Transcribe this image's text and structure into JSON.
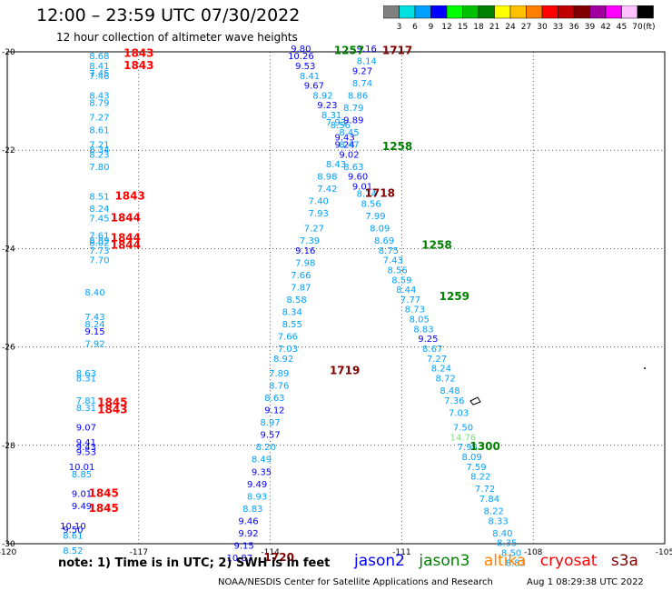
{
  "header": {
    "title": "12:00 – 23:59 UTC 07/30/2022",
    "subtitle": "12 hour collection of altimeter wave heights"
  },
  "color_legend": {
    "unit": "(ft)",
    "colors": [
      "#808080",
      "#00e0e0",
      "#00a0ff",
      "#0000ff",
      "#00ff00",
      "#00c000",
      "#008000",
      "#ffff00",
      "#ffc000",
      "#ff8000",
      "#ff0000",
      "#c00000",
      "#800000",
      "#a000a0",
      "#ff00ff",
      "#ffc0ff",
      "#000000"
    ],
    "labels": [
      "3",
      "6",
      "9",
      "12",
      "15",
      "18",
      "21",
      "24",
      "27",
      "30",
      "33",
      "36",
      "39",
      "42",
      "45",
      "70"
    ]
  },
  "map": {
    "lon_ticks": [
      "-120",
      "-117",
      "-114",
      "-111",
      "-108",
      "-105"
    ],
    "lat_ticks": [
      "-20",
      "-22",
      "-24",
      "-26",
      "-28",
      "-30"
    ]
  },
  "chart_data": {
    "type": "scatter",
    "xlim": [
      -120,
      -105
    ],
    "ylim": [
      -30,
      -20
    ],
    "grid": true,
    "points": [
      {
        "x": -117.9,
        "y": -20.15,
        "text": "8.68",
        "c": "#00a0ff"
      },
      {
        "x": -117.9,
        "y": -20.35,
        "text": "8.41",
        "c": "#00a0ff"
      },
      {
        "x": -117.9,
        "y": -20.5,
        "text": "7.45",
        "c": "#00a0ff"
      },
      {
        "x": -117.9,
        "y": -20.55,
        "text": "7.48",
        "c": "#00a0ff"
      },
      {
        "x": -117.9,
        "y": -20.95,
        "text": "8.43",
        "c": "#00a0ff"
      },
      {
        "x": -117.9,
        "y": -21.1,
        "text": "8.79",
        "c": "#00a0ff"
      },
      {
        "x": -117.9,
        "y": -21.4,
        "text": "7.27",
        "c": "#00a0ff"
      },
      {
        "x": -117.9,
        "y": -21.65,
        "text": "8.61",
        "c": "#00a0ff"
      },
      {
        "x": -117.9,
        "y": -21.95,
        "text": "7.21",
        "c": "#00a0ff"
      },
      {
        "x": -117.9,
        "y": -22.05,
        "text": "8.34",
        "c": "#00a0ff"
      },
      {
        "x": -117.9,
        "y": -22.15,
        "text": "8.23",
        "c": "#00a0ff"
      },
      {
        "x": -117.9,
        "y": -22.4,
        "text": "7.80",
        "c": "#00a0ff"
      },
      {
        "x": -117.9,
        "y": -23.0,
        "text": "8.51",
        "c": "#00a0ff"
      },
      {
        "x": -117.9,
        "y": -23.25,
        "text": "8.24",
        "c": "#00a0ff"
      },
      {
        "x": -117.9,
        "y": -23.45,
        "text": "7.45",
        "c": "#00a0ff"
      },
      {
        "x": -117.9,
        "y": -23.8,
        "text": "7.61",
        "c": "#00a0ff"
      },
      {
        "x": -117.9,
        "y": -23.9,
        "text": "8.89",
        "c": "#00a0ff"
      },
      {
        "x": -117.9,
        "y": -23.95,
        "text": "8.02",
        "c": "#00a0ff"
      },
      {
        "x": -117.9,
        "y": -24.1,
        "text": "7.73",
        "c": "#00a0ff"
      },
      {
        "x": -117.9,
        "y": -24.3,
        "text": "7.70",
        "c": "#00a0ff"
      },
      {
        "x": -118.0,
        "y": -24.95,
        "text": "8.40",
        "c": "#00a0ff"
      },
      {
        "x": -118.0,
        "y": -25.45,
        "text": "7.43",
        "c": "#00a0ff"
      },
      {
        "x": -118.0,
        "y": -25.6,
        "text": "8.24",
        "c": "#00a0ff"
      },
      {
        "x": -118.0,
        "y": -25.75,
        "text": "9.15",
        "c": "#0000ff"
      },
      {
        "x": -118.0,
        "y": -26.0,
        "text": "7.92",
        "c": "#00a0ff"
      },
      {
        "x": -118.2,
        "y": -26.6,
        "text": "8.63",
        "c": "#00a0ff"
      },
      {
        "x": -118.2,
        "y": -26.7,
        "text": "8.31",
        "c": "#00a0ff"
      },
      {
        "x": -118.2,
        "y": -27.15,
        "text": "7.81",
        "c": "#00a0ff"
      },
      {
        "x": -118.2,
        "y": -27.3,
        "text": "8.31",
        "c": "#00a0ff"
      },
      {
        "x": -118.2,
        "y": -27.7,
        "text": "9.07",
        "c": "#0000ff"
      },
      {
        "x": -118.2,
        "y": -28.0,
        "text": "9.41",
        "c": "#0000ff"
      },
      {
        "x": -118.2,
        "y": -28.1,
        "text": "9.43",
        "c": "#0000ff"
      },
      {
        "x": -118.2,
        "y": -28.2,
        "text": "9.53",
        "c": "#0000ff"
      },
      {
        "x": -118.3,
        "y": -28.5,
        "text": "10.01",
        "c": "#0000ff"
      },
      {
        "x": -118.3,
        "y": -28.65,
        "text": "8.85",
        "c": "#00a0ff"
      },
      {
        "x": -118.3,
        "y": -29.05,
        "text": "9.01",
        "c": "#0000ff"
      },
      {
        "x": -118.3,
        "y": -29.3,
        "text": "9.49",
        "c": "#0000ff"
      },
      {
        "x": -118.5,
        "y": -29.7,
        "text": "10.10",
        "c": "#0000ff"
      },
      {
        "x": -118.5,
        "y": -29.78,
        "text": "9.50",
        "c": "#0000ff"
      },
      {
        "x": -118.5,
        "y": -29.9,
        "text": "8.61",
        "c": "#00a0ff"
      },
      {
        "x": -118.5,
        "y": -30.2,
        "text": "8.52",
        "c": "#00a0ff"
      },
      {
        "x": -113.3,
        "y": -20.0,
        "text": "9.80",
        "c": "#0000ff"
      },
      {
        "x": -113.3,
        "y": -20.15,
        "text": "10.26",
        "c": "#0000ff"
      },
      {
        "x": -113.2,
        "y": -20.35,
        "text": "9.53",
        "c": "#0000ff"
      },
      {
        "x": -113.1,
        "y": -20.55,
        "text": "8.41",
        "c": "#00a0ff"
      },
      {
        "x": -113.0,
        "y": -20.75,
        "text": "9.67",
        "c": "#0000ff"
      },
      {
        "x": -112.8,
        "y": -20.95,
        "text": "8.92",
        "c": "#00a0ff"
      },
      {
        "x": -112.7,
        "y": -21.15,
        "text": "9.23",
        "c": "#0000ff"
      },
      {
        "x": -112.6,
        "y": -21.35,
        "text": "8.31",
        "c": "#00a0ff"
      },
      {
        "x": -112.5,
        "y": -21.5,
        "text": "7.93",
        "c": "#00a0ff"
      },
      {
        "x": -112.4,
        "y": -21.55,
        "text": "8.56",
        "c": "#00a0ff"
      },
      {
        "x": -112.3,
        "y": -21.8,
        "text": "9.43",
        "c": "#0000ff"
      },
      {
        "x": -112.3,
        "y": -21.95,
        "text": "9.24",
        "c": "#0000ff"
      },
      {
        "x": -112.2,
        "y": -22.15,
        "text": "9.02",
        "c": "#0000ff"
      },
      {
        "x": -112.5,
        "y": -22.35,
        "text": "8.43",
        "c": "#00a0ff"
      },
      {
        "x": -112.7,
        "y": -22.6,
        "text": "8.98",
        "c": "#00a0ff"
      },
      {
        "x": -112.7,
        "y": -22.85,
        "text": "7.42",
        "c": "#00a0ff"
      },
      {
        "x": -112.9,
        "y": -23.1,
        "text": "7.40",
        "c": "#00a0ff"
      },
      {
        "x": -112.9,
        "y": -23.35,
        "text": "7.93",
        "c": "#00a0ff"
      },
      {
        "x": -113.0,
        "y": -23.65,
        "text": "7.27",
        "c": "#00a0ff"
      },
      {
        "x": -113.1,
        "y": -23.9,
        "text": "7.39",
        "c": "#00a0ff"
      },
      {
        "x": -113.2,
        "y": -24.1,
        "text": "9.16",
        "c": "#0000ff"
      },
      {
        "x": -113.2,
        "y": -24.35,
        "text": "7.98",
        "c": "#00a0ff"
      },
      {
        "x": -113.3,
        "y": -24.6,
        "text": "7.66",
        "c": "#00a0ff"
      },
      {
        "x": -113.3,
        "y": -24.85,
        "text": "7.87",
        "c": "#00a0ff"
      },
      {
        "x": -113.4,
        "y": -25.1,
        "text": "8.58",
        "c": "#00a0ff"
      },
      {
        "x": -113.5,
        "y": -25.35,
        "text": "8.34",
        "c": "#00a0ff"
      },
      {
        "x": -113.5,
        "y": -25.6,
        "text": "8.55",
        "c": "#00a0ff"
      },
      {
        "x": -113.6,
        "y": -25.85,
        "text": "7.66",
        "c": "#00a0ff"
      },
      {
        "x": -113.6,
        "y": -26.1,
        "text": "7.03",
        "c": "#00a0ff"
      },
      {
        "x": -113.7,
        "y": -26.3,
        "text": "8.92",
        "c": "#00a0ff"
      },
      {
        "x": -113.8,
        "y": -26.6,
        "text": "7.89",
        "c": "#00a0ff"
      },
      {
        "x": -113.8,
        "y": -26.85,
        "text": "8.76",
        "c": "#00a0ff"
      },
      {
        "x": -113.9,
        "y": -27.1,
        "text": "8.63",
        "c": "#00a0ff"
      },
      {
        "x": -113.9,
        "y": -27.35,
        "text": "9.12",
        "c": "#0000ff"
      },
      {
        "x": -114.0,
        "y": -27.6,
        "text": "8.97",
        "c": "#00a0ff"
      },
      {
        "x": -114.0,
        "y": -27.85,
        "text": "9.57",
        "c": "#0000ff"
      },
      {
        "x": -114.1,
        "y": -28.1,
        "text": "8.20",
        "c": "#00a0ff"
      },
      {
        "x": -114.2,
        "y": -28.35,
        "text": "8.49",
        "c": "#00a0ff"
      },
      {
        "x": -114.2,
        "y": -28.6,
        "text": "9.35",
        "c": "#0000ff"
      },
      {
        "x": -114.3,
        "y": -28.85,
        "text": "9.49",
        "c": "#0000ff"
      },
      {
        "x": -114.3,
        "y": -29.1,
        "text": "8.93",
        "c": "#00a0ff"
      },
      {
        "x": -114.4,
        "y": -29.35,
        "text": "8.83",
        "c": "#00a0ff"
      },
      {
        "x": -114.5,
        "y": -29.6,
        "text": "9.46",
        "c": "#0000ff"
      },
      {
        "x": -114.5,
        "y": -29.85,
        "text": "9.92",
        "c": "#0000ff"
      },
      {
        "x": -114.6,
        "y": -30.1,
        "text": "9.15",
        "c": "#0000ff"
      },
      {
        "x": -114.7,
        "y": -30.35,
        "text": "10.87",
        "c": "#0000ff"
      },
      {
        "x": -111.8,
        "y": -20.0,
        "text": "9.16",
        "c": "#0000ff"
      },
      {
        "x": -111.8,
        "y": -20.25,
        "text": "8.14",
        "c": "#00a0ff"
      },
      {
        "x": -111.9,
        "y": -20.45,
        "text": "9.27",
        "c": "#0000ff"
      },
      {
        "x": -111.9,
        "y": -20.7,
        "text": "8.74",
        "c": "#00a0ff"
      },
      {
        "x": -112.0,
        "y": -20.95,
        "text": "8.86",
        "c": "#00a0ff"
      },
      {
        "x": -112.1,
        "y": -21.2,
        "text": "8.79",
        "c": "#00a0ff"
      },
      {
        "x": -112.1,
        "y": -21.45,
        "text": "9.89",
        "c": "#0000ff"
      },
      {
        "x": -112.2,
        "y": -21.7,
        "text": "8.45",
        "c": "#00a0ff"
      },
      {
        "x": -112.2,
        "y": -21.95,
        "text": "8.47",
        "c": "#00a0ff"
      },
      {
        "x": -112.1,
        "y": -22.4,
        "text": "8.63",
        "c": "#00a0ff"
      },
      {
        "x": -112.0,
        "y": -22.6,
        "text": "9.60",
        "c": "#0000ff"
      },
      {
        "x": -111.9,
        "y": -22.8,
        "text": "9.01",
        "c": "#0000ff"
      },
      {
        "x": -111.8,
        "y": -22.95,
        "text": "8.74",
        "c": "#00a0ff"
      },
      {
        "x": -111.7,
        "y": -23.15,
        "text": "8.56",
        "c": "#00a0ff"
      },
      {
        "x": -111.6,
        "y": -23.4,
        "text": "7.99",
        "c": "#00a0ff"
      },
      {
        "x": -111.5,
        "y": -23.65,
        "text": "8.09",
        "c": "#00a0ff"
      },
      {
        "x": -111.4,
        "y": -23.9,
        "text": "8.69",
        "c": "#00a0ff"
      },
      {
        "x": -111.3,
        "y": -24.1,
        "text": "8.75",
        "c": "#00a0ff"
      },
      {
        "x": -111.2,
        "y": -24.3,
        "text": "7.43",
        "c": "#00a0ff"
      },
      {
        "x": -111.1,
        "y": -24.5,
        "text": "8.56",
        "c": "#00a0ff"
      },
      {
        "x": -111.0,
        "y": -24.7,
        "text": "8.59",
        "c": "#00a0ff"
      },
      {
        "x": -110.9,
        "y": -24.9,
        "text": "8.44",
        "c": "#00a0ff"
      },
      {
        "x": -110.8,
        "y": -25.1,
        "text": "7.77",
        "c": "#00a0ff"
      },
      {
        "x": -110.7,
        "y": -25.3,
        "text": "8.73",
        "c": "#00a0ff"
      },
      {
        "x": -110.6,
        "y": -25.5,
        "text": "8.05",
        "c": "#00a0ff"
      },
      {
        "x": -110.5,
        "y": -25.7,
        "text": "8.83",
        "c": "#00a0ff"
      },
      {
        "x": -110.4,
        "y": -25.9,
        "text": "9.25",
        "c": "#0000ff"
      },
      {
        "x": -110.3,
        "y": -26.1,
        "text": "8.67",
        "c": "#00a0ff"
      },
      {
        "x": -110.2,
        "y": -26.3,
        "text": "7.27",
        "c": "#00a0ff"
      },
      {
        "x": -110.1,
        "y": -26.5,
        "text": "8.24",
        "c": "#00a0ff"
      },
      {
        "x": -110.0,
        "y": -26.7,
        "text": "8.72",
        "c": "#00a0ff"
      },
      {
        "x": -109.9,
        "y": -26.95,
        "text": "8.48",
        "c": "#00a0ff"
      },
      {
        "x": -109.8,
        "y": -27.15,
        "text": "7.36",
        "c": "#00a0ff"
      },
      {
        "x": -109.7,
        "y": -27.4,
        "text": "7.03",
        "c": "#00a0ff"
      },
      {
        "x": -109.6,
        "y": -27.7,
        "text": "7.50",
        "c": "#00a0ff"
      },
      {
        "x": -109.6,
        "y": -27.9,
        "text": "14.76",
        "c": "#80e080"
      },
      {
        "x": -109.5,
        "y": -28.1,
        "text": "7.95",
        "c": "#00a0ff"
      },
      {
        "x": -109.4,
        "y": -28.3,
        "text": "8.09",
        "c": "#00a0ff"
      },
      {
        "x": -109.3,
        "y": -28.5,
        "text": "7.59",
        "c": "#00a0ff"
      },
      {
        "x": -109.2,
        "y": -28.7,
        "text": "8.22",
        "c": "#00a0ff"
      },
      {
        "x": -109.1,
        "y": -28.95,
        "text": "7.72",
        "c": "#00a0ff"
      },
      {
        "x": -109.0,
        "y": -29.15,
        "text": "7.84",
        "c": "#00a0ff"
      },
      {
        "x": -108.9,
        "y": -29.4,
        "text": "8.22",
        "c": "#00a0ff"
      },
      {
        "x": -108.8,
        "y": -29.6,
        "text": "8.33",
        "c": "#00a0ff"
      },
      {
        "x": -108.7,
        "y": -29.85,
        "text": "8.40",
        "c": "#00a0ff"
      },
      {
        "x": -108.6,
        "y": -30.05,
        "text": "8.35",
        "c": "#00a0ff"
      },
      {
        "x": -108.5,
        "y": -30.25,
        "text": "8.50",
        "c": "#00a0ff"
      },
      {
        "x": -108.4,
        "y": -30.45,
        "text": "8.83",
        "c": "#00a0ff"
      }
    ],
    "pass_times": [
      {
        "x": -117.0,
        "y": -20.1,
        "text": "1843",
        "c": "#ff0000"
      },
      {
        "x": -117.0,
        "y": -20.35,
        "text": "1843",
        "c": "#ff0000"
      },
      {
        "x": -117.2,
        "y": -23.0,
        "text": "1843",
        "c": "#ff0000"
      },
      {
        "x": -117.3,
        "y": -23.45,
        "text": "1844",
        "c": "#ff0000"
      },
      {
        "x": -117.3,
        "y": -23.85,
        "text": "1844",
        "c": "#ff0000"
      },
      {
        "x": -117.3,
        "y": -24.0,
        "text": "1844",
        "c": "#ff0000"
      },
      {
        "x": -117.6,
        "y": -27.2,
        "text": "1845",
        "c": "#ff0000"
      },
      {
        "x": -117.6,
        "y": -27.35,
        "text": "1843",
        "c": "#ff0000"
      },
      {
        "x": -117.8,
        "y": -29.05,
        "text": "1845",
        "c": "#ff0000"
      },
      {
        "x": -117.8,
        "y": -29.35,
        "text": "1845",
        "c": "#ff0000"
      },
      {
        "x": -112.2,
        "y": -20.05,
        "text": "1257",
        "c": "#008000"
      },
      {
        "x": -111.1,
        "y": -20.05,
        "text": "1717",
        "c": "#800000"
      },
      {
        "x": -111.1,
        "y": -22.0,
        "text": "1258",
        "c": "#008000"
      },
      {
        "x": -111.5,
        "y": -22.95,
        "text": "1718",
        "c": "#800000"
      },
      {
        "x": -110.2,
        "y": -24.0,
        "text": "1258",
        "c": "#008000"
      },
      {
        "x": -109.8,
        "y": -25.05,
        "text": "1259",
        "c": "#008000"
      },
      {
        "x": -112.3,
        "y": -26.55,
        "text": "1719",
        "c": "#800000"
      },
      {
        "x": -109.1,
        "y": -28.1,
        "text": "1300",
        "c": "#008000"
      },
      {
        "x": -113.8,
        "y": -30.35,
        "text": "1720",
        "c": "#800000"
      }
    ],
    "xlabel": "",
    "ylabel": ""
  },
  "note": "note:  1) Time is in UTC;  2) SWH is in feet",
  "satellites": [
    {
      "name": "jason2",
      "color": "#0000ff"
    },
    {
      "name": "jason3",
      "color": "#008000"
    },
    {
      "name": "altika",
      "color": "#ff8000"
    },
    {
      "name": "cryosat",
      "color": "#ff0000"
    },
    {
      "name": "s3a",
      "color": "#800000"
    }
  ],
  "footer": {
    "credit": "NOAA/NESDIS Center for Satellite Applications and Research",
    "timestamp": "Aug  1 08:29:38 UTC 2022"
  }
}
